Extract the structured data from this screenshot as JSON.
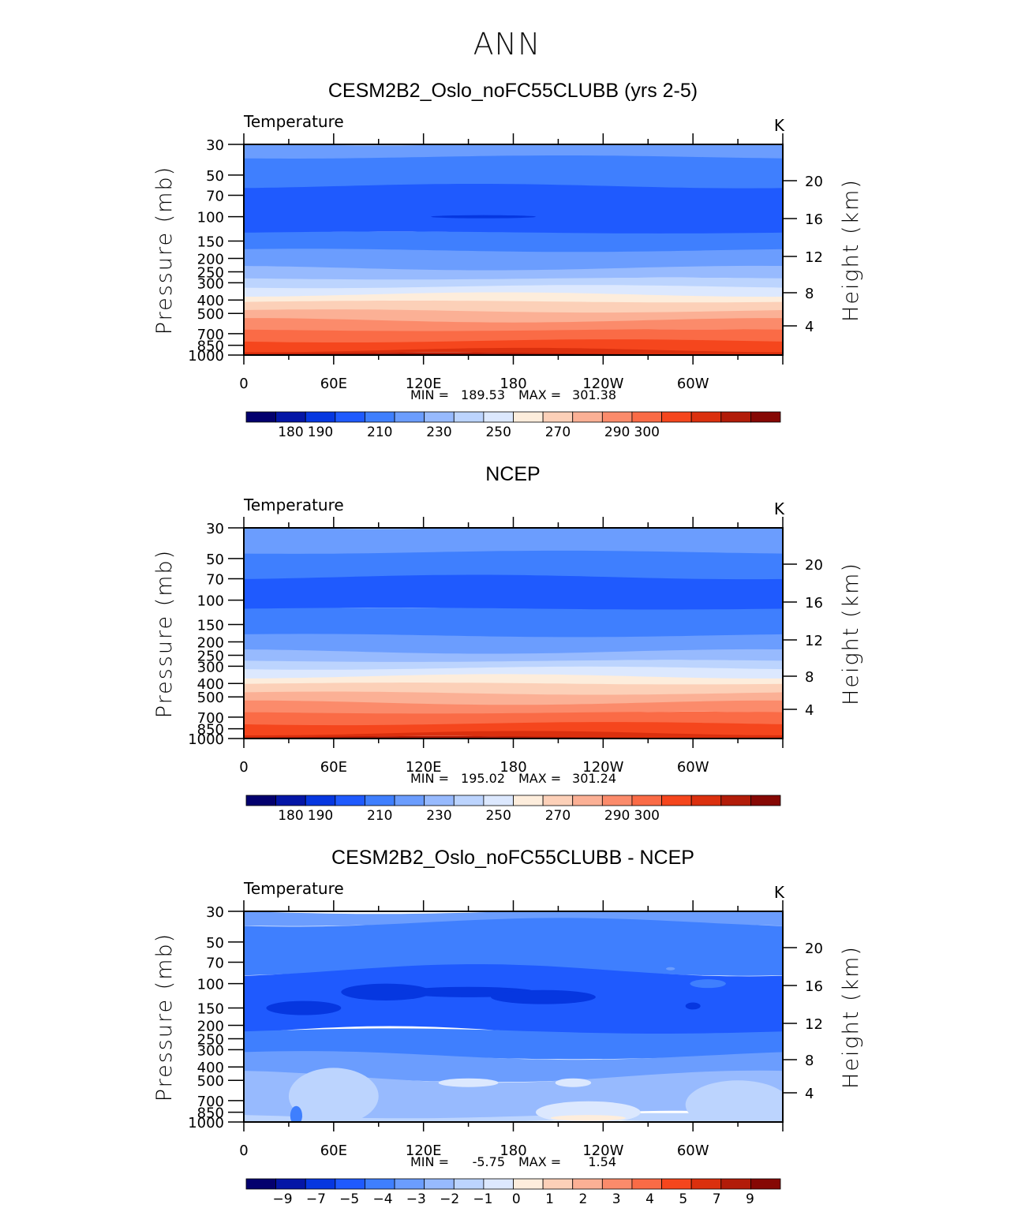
{
  "figure": {
    "season": "ANN",
    "panel_label": "Temperature",
    "units": "K",
    "left_axis_label": "Pressure (mb)",
    "right_axis_label": "Height (km)",
    "min_label": "MIN =",
    "max_label": "MAX ="
  },
  "colors": {
    "abs": [
      "#03006e",
      "#0416a6",
      "#0637e0",
      "#1f5afe",
      "#3f7ffe",
      "#6b9dfe",
      "#97bafe",
      "#bcd4fe",
      "#dce8fe",
      "#fdeddc",
      "#fcd0b8",
      "#fbb095",
      "#fb8b6b",
      "#fa6b46",
      "#f5461d",
      "#db300e",
      "#b21c09",
      "#860804"
    ],
    "diff": [
      "#03006e",
      "#0416a6",
      "#0637e0",
      "#1f5afe",
      "#3f7ffe",
      "#6b9dfe",
      "#97bafe",
      "#bcd4fe",
      "#dce8fe",
      "#fdeddc",
      "#fcd0b8",
      "#fbb095",
      "#fb8b6b",
      "#fa6b46",
      "#f5461d",
      "#db300e",
      "#b21c09",
      "#860804"
    ]
  },
  "chart_data": [
    {
      "type": "heatmap",
      "title": "CESM2B2_Oslo_noFC55CLUBB (yrs 2-5)",
      "subtitle": "Temperature",
      "units": "K",
      "min": "189.53",
      "max": "301.38",
      "x_ticks": [
        "0",
        "60E",
        "120E",
        "180",
        "120W",
        "60W"
      ],
      "x_range": [
        0,
        360
      ],
      "y_ticks": [
        "30",
        "50",
        "70",
        "100",
        "150",
        "200",
        "250",
        "300",
        "400",
        "500",
        "700",
        "850",
        "1000"
      ],
      "y_range_mb": [
        30,
        1000
      ],
      "y2_ticks": [
        "20",
        "16",
        "12",
        "8",
        "4"
      ],
      "colorbar_labels": [
        "180",
        "190",
        "210",
        "230",
        "250",
        "270",
        "290",
        "300"
      ],
      "bands": [
        {
          "p_top": 30,
          "p_bot": 37,
          "level": 5
        },
        {
          "p_top": 37,
          "p_bot": 60,
          "level": 4
        },
        {
          "p_top": 60,
          "p_bot": 130,
          "level": 3
        },
        {
          "p_top": 130,
          "p_bot": 175,
          "level": 4
        },
        {
          "p_top": 175,
          "p_bot": 235,
          "level": 5
        },
        {
          "p_top": 235,
          "p_bot": 280,
          "level": 6
        },
        {
          "p_top": 280,
          "p_bot": 320,
          "level": 7
        },
        {
          "p_top": 320,
          "p_bot": 365,
          "level": 8
        },
        {
          "p_top": 365,
          "p_bot": 410,
          "level": 9
        },
        {
          "p_top": 410,
          "p_bot": 480,
          "level": 10
        },
        {
          "p_top": 480,
          "p_bot": 560,
          "level": 11
        },
        {
          "p_top": 560,
          "p_bot": 660,
          "level": 12
        },
        {
          "p_top": 660,
          "p_bot": 790,
          "level": 13
        },
        {
          "p_top": 790,
          "p_bot": 920,
          "level": 14
        },
        {
          "p_top": 920,
          "p_bot": 975,
          "level": 15
        },
        {
          "p_top": 975,
          "p_bot": 1000,
          "level": 16
        }
      ],
      "spots": [
        {
          "lon": 160,
          "p": 100,
          "w": 35,
          "h": 3,
          "level": 2
        }
      ]
    },
    {
      "type": "heatmap",
      "title": "NCEP",
      "subtitle": "Temperature",
      "units": "K",
      "min": "195.02",
      "max": "301.24",
      "x_ticks": [
        "0",
        "60E",
        "120E",
        "180",
        "120W",
        "60W"
      ],
      "x_range": [
        0,
        360
      ],
      "y_ticks": [
        "30",
        "50",
        "70",
        "100",
        "150",
        "200",
        "250",
        "300",
        "400",
        "500",
        "700",
        "850",
        "1000"
      ],
      "y_range_mb": [
        30,
        1000
      ],
      "y2_ticks": [
        "20",
        "16",
        "12",
        "8",
        "4"
      ],
      "colorbar_labels": [
        "180",
        "190",
        "210",
        "230",
        "250",
        "270",
        "290",
        "300"
      ],
      "bands": [
        {
          "p_top": 30,
          "p_bot": 45,
          "level": 5
        },
        {
          "p_top": 45,
          "p_bot": 68,
          "level": 4
        },
        {
          "p_top": 68,
          "p_bot": 115,
          "level": 3
        },
        {
          "p_top": 115,
          "p_bot": 180,
          "level": 4
        },
        {
          "p_top": 180,
          "p_bot": 235,
          "level": 5
        },
        {
          "p_top": 235,
          "p_bot": 275,
          "level": 6
        },
        {
          "p_top": 275,
          "p_bot": 310,
          "level": 7
        },
        {
          "p_top": 310,
          "p_bot": 355,
          "level": 8
        },
        {
          "p_top": 355,
          "p_bot": 400,
          "level": 9
        },
        {
          "p_top": 400,
          "p_bot": 470,
          "level": 10
        },
        {
          "p_top": 470,
          "p_bot": 550,
          "level": 11
        },
        {
          "p_top": 550,
          "p_bot": 650,
          "level": 12
        },
        {
          "p_top": 650,
          "p_bot": 780,
          "level": 13
        },
        {
          "p_top": 780,
          "p_bot": 915,
          "level": 14
        },
        {
          "p_top": 915,
          "p_bot": 975,
          "level": 15
        },
        {
          "p_top": 975,
          "p_bot": 1000,
          "level": 16
        }
      ],
      "spots": []
    },
    {
      "type": "heatmap",
      "title": "CESM2B2_Oslo_noFC55CLUBB - NCEP",
      "subtitle": "Temperature",
      "units": "K",
      "min": "-5.75",
      "max": "1.54",
      "x_ticks": [
        "0",
        "60E",
        "120E",
        "180",
        "120W",
        "60W"
      ],
      "x_range": [
        0,
        360
      ],
      "y_ticks": [
        "30",
        "50",
        "70",
        "100",
        "150",
        "200",
        "250",
        "300",
        "400",
        "500",
        "700",
        "850",
        "1000"
      ],
      "y_range_mb": [
        30,
        1000
      ],
      "y2_ticks": [
        "20",
        "16",
        "12",
        "8",
        "4"
      ],
      "colorbar_labels": [
        "−9",
        "−7",
        "−5",
        "−4",
        "−3",
        "−2",
        "−1",
        "0",
        "1",
        "2",
        "3",
        "4",
        "5",
        "7",
        "9"
      ],
      "bands": [
        {
          "p_top": 30,
          "p_bot": 36,
          "level": 5
        },
        {
          "p_top": 36,
          "p_bot": 80,
          "level": 4
        },
        {
          "p_top": 80,
          "p_bot": 220,
          "level": 3
        },
        {
          "p_top": 220,
          "p_bot": 330,
          "level": 4
        },
        {
          "p_top": 330,
          "p_bot": 470,
          "level": 5
        },
        {
          "p_top": 470,
          "p_bot": 900,
          "level": 6
        },
        {
          "p_top": 900,
          "p_bot": 1000,
          "level": 7
        }
      ],
      "spots": [
        {
          "lon": 95,
          "p": 115,
          "w": 30,
          "h": 30,
          "level": 2
        },
        {
          "lon": 150,
          "p": 115,
          "w": 45,
          "h": 18,
          "level": 2
        },
        {
          "lon": 200,
          "p": 125,
          "w": 35,
          "h": 25,
          "level": 2
        },
        {
          "lon": 300,
          "p": 145,
          "w": 5,
          "h": 12,
          "level": 2
        },
        {
          "lon": 310,
          "p": 100,
          "w": 12,
          "h": 15,
          "level": 4
        },
        {
          "lon": 285,
          "p": 78,
          "w": 3,
          "h": 4,
          "level": 5
        },
        {
          "lon": 40,
          "p": 150,
          "w": 25,
          "h": 25,
          "level": 2
        },
        {
          "lon": 150,
          "p": 520,
          "w": 20,
          "h": 15,
          "level": 8
        },
        {
          "lon": 220,
          "p": 520,
          "w": 12,
          "h": 15,
          "level": 8
        },
        {
          "lon": 230,
          "p": 850,
          "w": 35,
          "h": 40,
          "level": 8
        },
        {
          "lon": 230,
          "p": 935,
          "w": 25,
          "h": 10,
          "level": 9
        },
        {
          "lon": 60,
          "p": 650,
          "w": 30,
          "h": 120,
          "level": 7
        },
        {
          "lon": 35,
          "p": 900,
          "w": 4,
          "h": 35,
          "level": 4
        },
        {
          "lon": 330,
          "p": 750,
          "w": 35,
          "h": 100,
          "level": 7
        }
      ]
    }
  ]
}
